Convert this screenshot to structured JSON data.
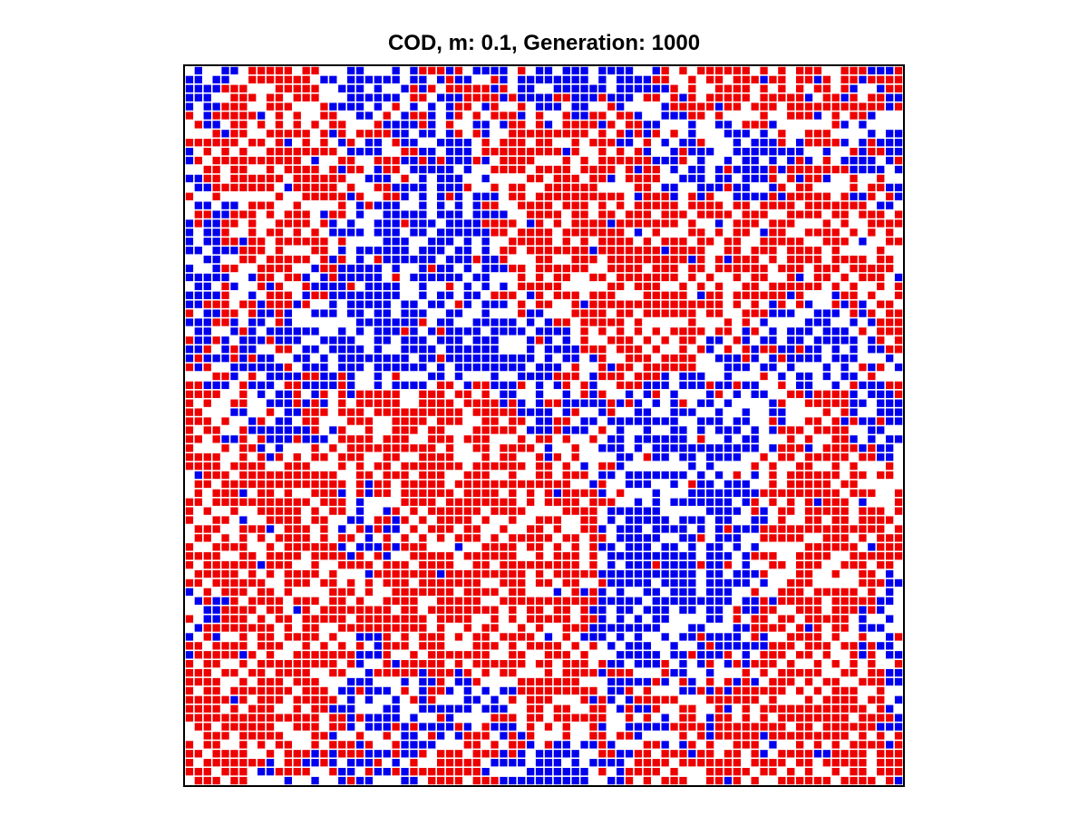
{
  "chart_data": {
    "type": "heatmap",
    "title": "COD, m: 0.1, Generation: 1000",
    "grid": {
      "rows": 80,
      "cols": 80
    },
    "states": [
      {
        "value": 0,
        "color": "#ffffff"
      },
      {
        "value": 1,
        "color": "#ee0000"
      },
      {
        "value": 2,
        "color": "#0000ee"
      }
    ],
    "legend": false,
    "axes_visible": false
  }
}
